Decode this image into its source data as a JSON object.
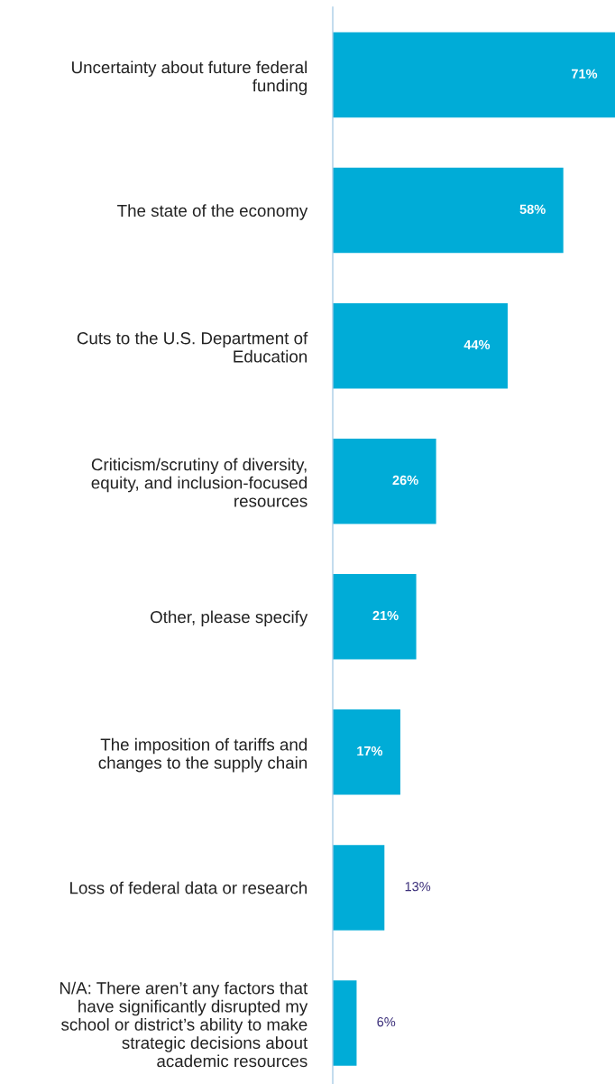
{
  "chart_data": {
    "type": "bar",
    "orientation": "horizontal",
    "categories": [
      "Uncertainty about future federal\nfunding",
      "The state of the economy",
      "Cuts to the U.S. Department of\nEducation",
      "Criticism/scrutiny of diversity,\nequity, and inclusion-focused\nresources",
      "Other, please specify",
      "The imposition of tariffs and\nchanges to the supply chain",
      "Loss of federal data or research",
      "N/A: There aren’t any factors that\nhave significantly disrupted my\nschool or district’s ability to make\nstrategic decisions about\nacademic resources"
    ],
    "values": [
      71,
      58,
      44,
      26,
      21,
      17,
      13,
      6
    ],
    "value_labels": [
      "71%",
      "58%",
      "44%",
      "26%",
      "21%",
      "17%",
      "13%",
      "6%"
    ],
    "color": "#00acd7"
  }
}
